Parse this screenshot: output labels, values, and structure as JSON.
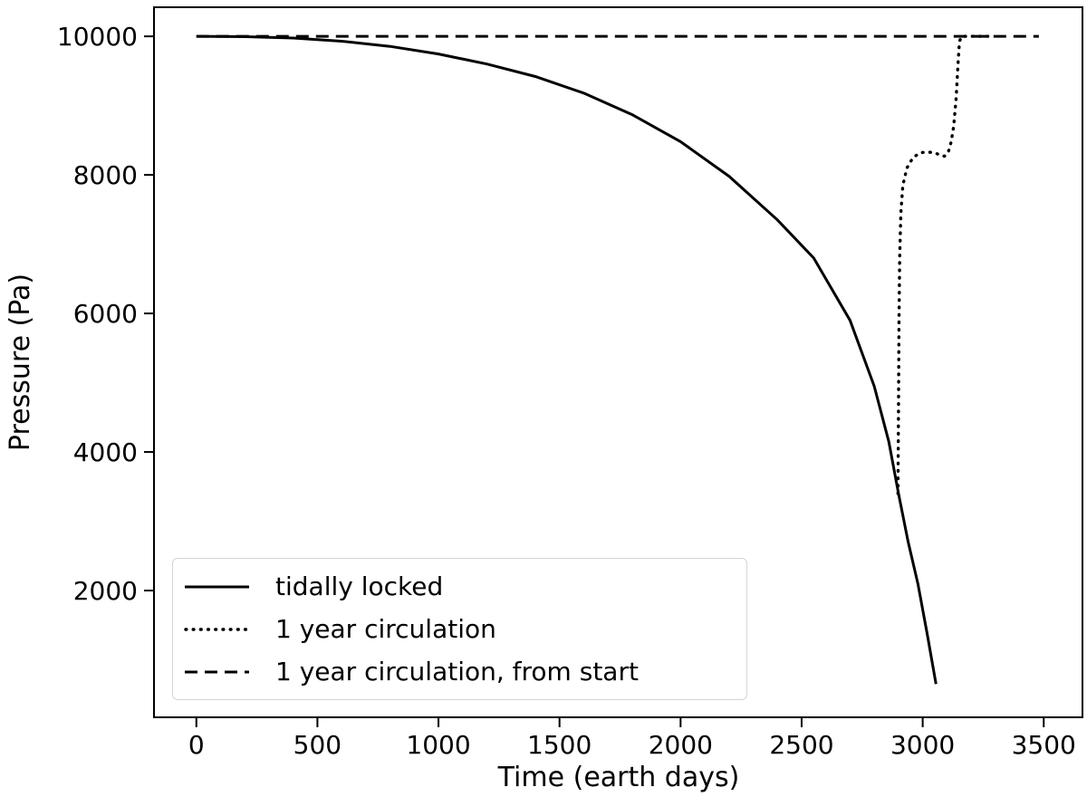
{
  "chart_data": {
    "type": "line",
    "title": "",
    "xlabel": "Time (earth days)",
    "ylabel": "Pressure (Pa)",
    "x_ticks": [
      0,
      500,
      1000,
      1500,
      2000,
      2500,
      3000,
      3500
    ],
    "y_ticks": [
      2000,
      4000,
      6000,
      8000,
      10000
    ],
    "xlim": [
      -175,
      3660
    ],
    "ylim": [
      170,
      10420
    ],
    "grid": false,
    "legend_position": "lower-left",
    "line_color": "#000000",
    "background_color": "#ffffff",
    "series": [
      {
        "name": "tidally locked",
        "style": "solid",
        "color": "#000000",
        "points": [
          [
            0,
            10000
          ],
          [
            200,
            9995
          ],
          [
            400,
            9975
          ],
          [
            600,
            9930
          ],
          [
            800,
            9855
          ],
          [
            1000,
            9745
          ],
          [
            1200,
            9600
          ],
          [
            1400,
            9420
          ],
          [
            1600,
            9180
          ],
          [
            1800,
            8870
          ],
          [
            2000,
            8480
          ],
          [
            2200,
            7980
          ],
          [
            2400,
            7350
          ],
          [
            2550,
            6800
          ],
          [
            2700,
            5900
          ],
          [
            2800,
            4950
          ],
          [
            2860,
            4150
          ],
          [
            2900,
            3400
          ],
          [
            2940,
            2700
          ],
          [
            2980,
            2100
          ],
          [
            3020,
            1350
          ],
          [
            3055,
            650
          ]
        ]
      },
      {
        "name": "1 year circulation",
        "style": "dotted",
        "color": "#000000",
        "points": [
          [
            2898,
            3400
          ],
          [
            2900,
            4600
          ],
          [
            2902,
            5800
          ],
          [
            2905,
            6800
          ],
          [
            2910,
            7450
          ],
          [
            2918,
            7850
          ],
          [
            2935,
            8100
          ],
          [
            2960,
            8250
          ],
          [
            2990,
            8320
          ],
          [
            3020,
            8330
          ],
          [
            3050,
            8320
          ],
          [
            3075,
            8280
          ],
          [
            3090,
            8270
          ],
          [
            3105,
            8320
          ],
          [
            3118,
            8480
          ],
          [
            3128,
            8700
          ],
          [
            3138,
            9100
          ],
          [
            3146,
            9600
          ],
          [
            3152,
            9930
          ],
          [
            3162,
            10000
          ],
          [
            3270,
            10000
          ]
        ]
      },
      {
        "name": "1 year circulation, from start",
        "style": "dashed",
        "color": "#000000",
        "points": [
          [
            0,
            10000
          ],
          [
            3480,
            10000
          ]
        ]
      }
    ]
  },
  "legend": {
    "items": [
      {
        "label": "tidally locked"
      },
      {
        "label": "1 year circulation"
      },
      {
        "label": "1 year circulation, from start"
      }
    ]
  }
}
